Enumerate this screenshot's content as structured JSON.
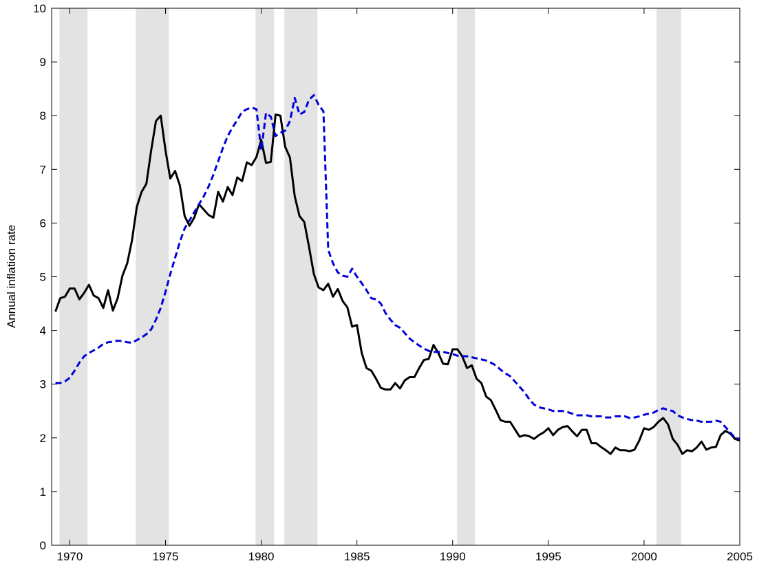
{
  "chart_data": {
    "type": "line",
    "ylabel": "Annual inflation rate",
    "x": [
      1969.25,
      1969.5,
      1969.75,
      1970,
      1970.25,
      1970.5,
      1970.75,
      1971,
      1971.25,
      1971.5,
      1971.75,
      1972,
      1972.25,
      1972.5,
      1972.75,
      1973,
      1973.25,
      1973.5,
      1973.75,
      1974,
      1974.25,
      1974.5,
      1974.75,
      1975,
      1975.25,
      1975.5,
      1975.75,
      1976,
      1976.25,
      1976.5,
      1976.75,
      1977,
      1977.25,
      1977.5,
      1977.75,
      1978,
      1978.25,
      1978.5,
      1978.75,
      1979,
      1979.25,
      1979.5,
      1979.75,
      1980,
      1980.25,
      1980.5,
      1980.75,
      1981,
      1981.25,
      1981.5,
      1981.75,
      1982,
      1982.25,
      1982.5,
      1982.75,
      1983,
      1983.25,
      1983.5,
      1983.75,
      1984,
      1984.25,
      1984.5,
      1984.75,
      1985,
      1985.25,
      1985.5,
      1985.75,
      1986,
      1986.25,
      1986.5,
      1986.75,
      1987,
      1987.25,
      1987.5,
      1987.75,
      1988,
      1988.25,
      1988.5,
      1988.75,
      1989,
      1989.25,
      1989.5,
      1989.75,
      1990,
      1990.25,
      1990.5,
      1990.75,
      1991,
      1991.25,
      1991.5,
      1991.75,
      1992,
      1992.25,
      1992.5,
      1992.75,
      1993,
      1993.25,
      1993.5,
      1993.75,
      1994,
      1994.25,
      1994.5,
      1994.75,
      1995,
      1995.25,
      1995.5,
      1995.75,
      1996,
      1996.25,
      1996.5,
      1996.75,
      1997,
      1997.25,
      1997.5,
      1997.75,
      1998,
      1998.25,
      1998.5,
      1998.75,
      1999,
      1999.25,
      1999.5,
      1999.75,
      2000,
      2000.25,
      2000.5,
      2000.75,
      2001,
      2001.25,
      2001.5,
      2001.75,
      2002,
      2002.25,
      2002.5,
      2002.75,
      2003,
      2003.25,
      2003.5,
      2003.75,
      2004,
      2004.25,
      2004.5,
      2004.75,
      2005
    ],
    "series": [
      {
        "color": "#000000",
        "dashed": false,
        "values": [
          4.35,
          4.6,
          4.63,
          4.78,
          4.78,
          4.58,
          4.7,
          4.85,
          4.65,
          4.6,
          4.42,
          4.75,
          4.37,
          4.6,
          5.02,
          5.25,
          5.68,
          6.3,
          6.58,
          6.73,
          7.35,
          7.9,
          8.0,
          7.35,
          6.83,
          6.97,
          6.7,
          6.13,
          5.95,
          6.1,
          6.35,
          6.25,
          6.15,
          6.1,
          6.58,
          6.4,
          6.67,
          6.52,
          6.85,
          6.78,
          7.13,
          7.08,
          7.23,
          7.55,
          7.12,
          7.14,
          8.02,
          8.0,
          7.42,
          7.22,
          6.5,
          6.13,
          6.02,
          5.55,
          5.05,
          4.8,
          4.75,
          4.87,
          4.63,
          4.77,
          4.55,
          4.43,
          4.07,
          4.1,
          3.58,
          3.3,
          3.25,
          3.1,
          2.93,
          2.9,
          2.9,
          3.02,
          2.92,
          3.07,
          3.13,
          3.13,
          3.3,
          3.45,
          3.47,
          3.73,
          3.58,
          3.38,
          3.37,
          3.65,
          3.65,
          3.52,
          3.3,
          3.35,
          3.1,
          3.02,
          2.77,
          2.7,
          2.52,
          2.33,
          2.3,
          2.3,
          2.16,
          2.02,
          2.05,
          2.03,
          1.98,
          2.05,
          2.1,
          2.18,
          2.05,
          2.15,
          2.2,
          2.22,
          2.12,
          2.03,
          2.15,
          2.15,
          1.9,
          1.9,
          1.83,
          1.77,
          1.7,
          1.82,
          1.77,
          1.77,
          1.75,
          1.78,
          1.95,
          2.18,
          2.15,
          2.2,
          2.3,
          2.37,
          2.25,
          1.98,
          1.87,
          1.7,
          1.77,
          1.75,
          1.82,
          1.93,
          1.78,
          1.82,
          1.83,
          2.05,
          2.13,
          2.08,
          1.98,
          1.95
        ]
      },
      {
        "color": "#0000dd",
        "dashed": true,
        "values": [
          3.02,
          3.02,
          3.05,
          3.12,
          3.25,
          3.4,
          3.52,
          3.58,
          3.63,
          3.68,
          3.75,
          3.78,
          3.79,
          3.81,
          3.8,
          3.78,
          3.77,
          3.82,
          3.87,
          3.93,
          4.02,
          4.2,
          4.42,
          4.72,
          5.05,
          5.35,
          5.65,
          5.9,
          6.05,
          6.2,
          6.35,
          6.5,
          6.68,
          6.9,
          7.15,
          7.4,
          7.62,
          7.78,
          7.92,
          8.07,
          8.12,
          8.15,
          8.12,
          7.35,
          8.05,
          7.98,
          7.62,
          7.68,
          7.72,
          7.9,
          8.33,
          8.02,
          8.07,
          8.3,
          8.38,
          8.2,
          8.08,
          5.5,
          5.25,
          5.08,
          5.02,
          5.0,
          5.15,
          5.0,
          4.88,
          4.75,
          4.6,
          4.58,
          4.5,
          4.32,
          4.2,
          4.1,
          4.05,
          3.95,
          3.85,
          3.78,
          3.72,
          3.66,
          3.62,
          3.6,
          3.6,
          3.6,
          3.58,
          3.56,
          3.53,
          3.52,
          3.52,
          3.5,
          3.48,
          3.46,
          3.44,
          3.4,
          3.35,
          3.27,
          3.2,
          3.15,
          3.05,
          2.95,
          2.85,
          2.72,
          2.62,
          2.57,
          2.55,
          2.53,
          2.5,
          2.5,
          2.5,
          2.48,
          2.45,
          2.42,
          2.42,
          2.42,
          2.4,
          2.4,
          2.4,
          2.38,
          2.38,
          2.4,
          2.4,
          2.4,
          2.37,
          2.38,
          2.4,
          2.43,
          2.45,
          2.47,
          2.52,
          2.55,
          2.52,
          2.5,
          2.42,
          2.38,
          2.35,
          2.33,
          2.32,
          2.3,
          2.3,
          2.3,
          2.32,
          2.3,
          2.2,
          2.1,
          2.0,
          1.97
        ]
      }
    ],
    "shaded_regions": [
      [
        1969.46,
        1970.93
      ],
      [
        1973.45,
        1975.17
      ],
      [
        1979.7,
        1980.67
      ],
      [
        1981.21,
        1982.94
      ],
      [
        1990.23,
        1991.16
      ],
      [
        2000.65,
        2001.94
      ]
    ],
    "shade_color": "#e3e3e3",
    "xlim": [
      1969.05,
      2005
    ],
    "xticks": [
      1970,
      1975,
      1980,
      1985,
      1990,
      1995,
      2000,
      2005
    ],
    "ylim": [
      0,
      10
    ],
    "yticks": [
      0,
      1,
      2,
      3,
      4,
      5,
      6,
      7,
      8,
      9,
      10
    ],
    "grid": false
  }
}
